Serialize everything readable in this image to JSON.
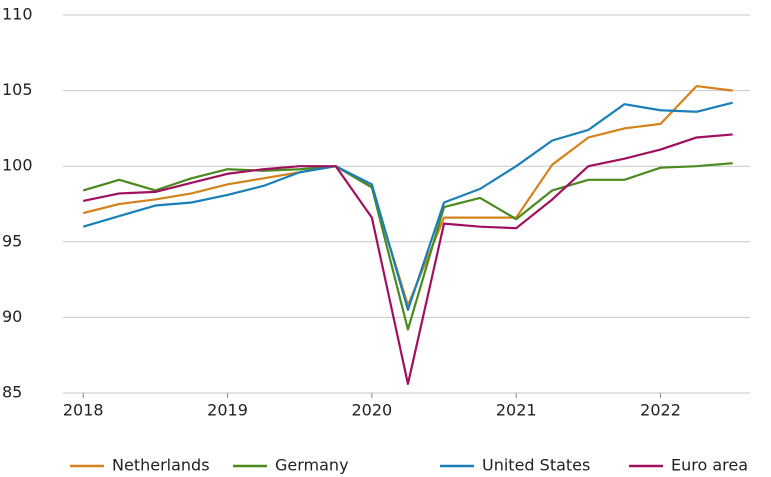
{
  "chart_data": {
    "type": "line",
    "x": [
      2018,
      2018.25,
      2018.5,
      2018.75,
      2019,
      2019.25,
      2019.5,
      2019.75,
      2020,
      2020.25,
      2020.5,
      2020.75,
      2021,
      2021.25,
      2021.5,
      2021.75,
      2022,
      2022.25,
      2022.5
    ],
    "series": [
      {
        "name": "Netherlands",
        "color": "#d4821c",
        "values": [
          96.9,
          97.5,
          97.8,
          98.2,
          98.8,
          99.2,
          99.6,
          100,
          98.6,
          90.8,
          96.6,
          96.6,
          96.6,
          100.1,
          101.9,
          102.5,
          102.8,
          105.3,
          105.0
        ]
      },
      {
        "name": "Germany",
        "color": "#4a8a1e",
        "values": [
          98.4,
          99.1,
          98.4,
          99.2,
          99.8,
          99.7,
          99.8,
          100,
          98.6,
          89.2,
          97.3,
          97.9,
          96.5,
          98.4,
          99.1,
          99.1,
          99.9,
          100,
          100.2
        ]
      },
      {
        "name": "United States",
        "color": "#1a7fb8",
        "values": [
          96.0,
          96.7,
          97.4,
          97.6,
          98.1,
          98.7,
          99.6,
          100,
          98.8,
          90.5,
          97.6,
          98.5,
          100.0,
          101.7,
          102.4,
          104.1,
          103.7,
          103.6,
          104.2
        ]
      },
      {
        "name": "Euro area",
        "color": "#a0105f",
        "values": [
          97.7,
          98.2,
          98.3,
          98.9,
          99.5,
          99.8,
          100,
          100,
          96.6,
          85.6,
          96.2,
          96.0,
          95.9,
          97.8,
          100.0,
          100.5,
          101.1,
          101.9,
          102.1
        ]
      }
    ],
    "xlim": [
      2017.86,
      2022.62
    ],
    "xticks": [
      2018,
      2019,
      2020,
      2021,
      2022
    ],
    "ylim": [
      85,
      110
    ],
    "yticks": [
      85,
      90,
      95,
      100,
      105,
      110
    ],
    "grid": true,
    "legend": "bottom"
  }
}
